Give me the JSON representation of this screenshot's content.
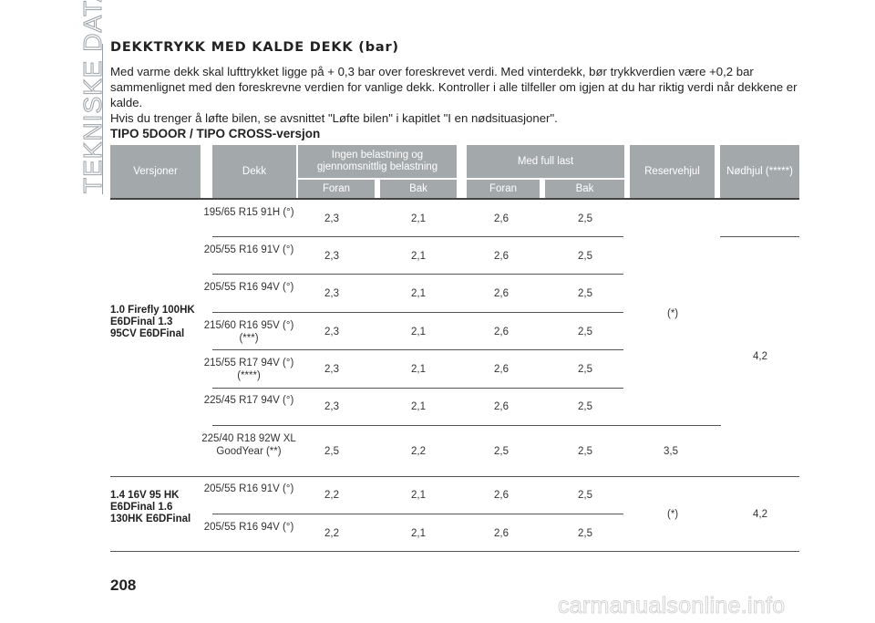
{
  "side_title": "TEKNISKE DATA",
  "heading": "DEKKTRYKK MED KALDE DEKK (bar)",
  "intro": [
    "Med varme dekk skal lufttrykket ligge på + 0,3 bar over foreskrevet verdi. Med vinterdekk, bør trykkverdien være +0,2 bar sammenlignet med den foreskrevne verdien for vanlige dekk. Kontroller i alle tilfeller om igjen at du har riktig verdi når dekkene er kalde.",
    "Hvis du trenger å løfte bilen, se avsnittet \"Løfte bilen\" i kapitlet \"I en nødsituasjoner\"."
  ],
  "table_title": "TIPO 5DOOR / TIPO CROSS-versjon",
  "headers": {
    "versjoner": "Versjoner",
    "dekk": "Dekk",
    "ingen": "Ingen belastning og gjennomsnittlig belastning",
    "full": "Med full last",
    "foran": "Foran",
    "bak": "Bak",
    "reserve": "Reservehjul",
    "nod": "Nødhjul (*****)"
  },
  "group1": {
    "version": "1.0 Firefly 100HK E6DFinal 1.3 95CV E6DFinal",
    "rows": [
      {
        "tyre": "195/65 R15 91H (°)",
        "v": [
          "2,3",
          "2,1",
          "2,6",
          "2,5"
        ]
      },
      {
        "tyre": "205/55 R16 91V (°)",
        "v": [
          "2,3",
          "2,1",
          "2,6",
          "2,5"
        ]
      },
      {
        "tyre": "205/55 R16 94V (°)",
        "v": [
          "2,3",
          "2,1",
          "2,6",
          "2,5"
        ]
      },
      {
        "tyre": "215/60 R16 95V (°) (***)",
        "v": [
          "2,3",
          "2,1",
          "2,6",
          "2,5"
        ]
      },
      {
        "tyre": "215/55 R17 94V (°) (****)",
        "v": [
          "2,3",
          "2,1",
          "2,6",
          "2,5"
        ]
      },
      {
        "tyre": "225/45 R17 94V (°)",
        "v": [
          "2,3",
          "2,1",
          "2,6",
          "2,5"
        ]
      },
      {
        "tyre": "225/40 R18 92W XL GoodYear (**)",
        "v": [
          "2,5",
          "2,2",
          "2,5",
          "2,5"
        ]
      }
    ],
    "reserve_main": "(*)",
    "reserve_last": "3,5",
    "nod": "4,2"
  },
  "group2": {
    "version": "1.4 16V 95 HK E6DFinal 1.6 130HK E6DFinal",
    "rows": [
      {
        "tyre": "205/55 R16 91V (°)",
        "v": [
          "2,2",
          "2,1",
          "2,6",
          "2,5"
        ]
      },
      {
        "tyre": "205/55 R16 94V (°)",
        "v": [
          "2,2",
          "2,1",
          "2,6",
          "2,5"
        ]
      }
    ],
    "reserve": "(*)",
    "nod": "4,2"
  },
  "page_number": "208",
  "watermark": "carmanualsonline.info"
}
